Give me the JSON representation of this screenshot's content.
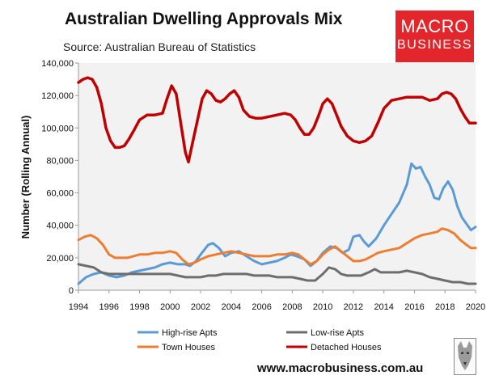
{
  "header": {
    "title": "Australian Dwelling Approvals Mix",
    "subtitle": "Source: Australian Bureau of Statistics",
    "logo_line1": "MACRO",
    "logo_line2": "BUSINESS"
  },
  "footer": {
    "url": "www.macrobusiness.com.au"
  },
  "colors": {
    "high_rise": "#5b9bd5",
    "low_rise": "#6d6d6d",
    "town_houses": "#ed7d31",
    "detached": "#c00000",
    "plot_bg": "#f2f2f2",
    "logo_bg": "#e3262b"
  },
  "chart_data": {
    "type": "line",
    "ylabel": "Number (Rolling Annual)",
    "ylim": [
      0,
      140000
    ],
    "xlim": [
      1994,
      2020
    ],
    "y_ticks": [
      0,
      20000,
      40000,
      60000,
      80000,
      100000,
      120000,
      140000
    ],
    "y_tick_labels": [
      "0",
      "20,000",
      "40,000",
      "60,000",
      "80,000",
      "100,000",
      "120,000",
      "140,000"
    ],
    "x_ticks": [
      1994,
      1996,
      1998,
      2000,
      2002,
      2004,
      2006,
      2008,
      2010,
      2012,
      2014,
      2016,
      2018,
      2020
    ],
    "x_tick_labels": [
      "1994",
      "1996",
      "1998",
      "2000",
      "2002",
      "2004",
      "2006",
      "2008",
      "2010",
      "2012",
      "2014",
      "2016",
      "2018",
      "2020"
    ],
    "grid": false,
    "legend_position": "bottom",
    "series": [
      {
        "name": "High-rise Apts",
        "color": "#5b9bd5",
        "points": [
          [
            1994.0,
            4000
          ],
          [
            1994.5,
            8000
          ],
          [
            1995.0,
            10000
          ],
          [
            1995.5,
            11000
          ],
          [
            1996.0,
            9000
          ],
          [
            1996.5,
            8000
          ],
          [
            1997.0,
            9000
          ],
          [
            1997.5,
            11000
          ],
          [
            1998.0,
            12000
          ],
          [
            1998.5,
            13000
          ],
          [
            1999.0,
            14000
          ],
          [
            1999.5,
            16000
          ],
          [
            2000.0,
            17000
          ],
          [
            2000.5,
            16000
          ],
          [
            2001.0,
            16000
          ],
          [
            2001.3,
            15000
          ],
          [
            2001.7,
            18000
          ],
          [
            2002.0,
            22000
          ],
          [
            2002.5,
            28000
          ],
          [
            2002.8,
            29000
          ],
          [
            2003.2,
            26000
          ],
          [
            2003.6,
            21000
          ],
          [
            2004.0,
            23000
          ],
          [
            2004.5,
            24000
          ],
          [
            2005.0,
            21000
          ],
          [
            2005.5,
            18000
          ],
          [
            2006.0,
            16000
          ],
          [
            2006.5,
            17000
          ],
          [
            2007.0,
            18000
          ],
          [
            2007.5,
            20000
          ],
          [
            2007.9,
            22000
          ],
          [
            2008.3,
            21000
          ],
          [
            2008.8,
            19000
          ],
          [
            2009.2,
            15000
          ],
          [
            2009.6,
            18000
          ],
          [
            2010.0,
            23000
          ],
          [
            2010.5,
            27000
          ],
          [
            2010.9,
            26000
          ],
          [
            2011.3,
            23000
          ],
          [
            2011.7,
            25000
          ],
          [
            2012.0,
            33000
          ],
          [
            2012.4,
            34000
          ],
          [
            2012.7,
            30000
          ],
          [
            2013.0,
            27000
          ],
          [
            2013.5,
            32000
          ],
          [
            2014.0,
            40000
          ],
          [
            2014.5,
            47000
          ],
          [
            2015.0,
            54000
          ],
          [
            2015.5,
            65000
          ],
          [
            2015.8,
            78000
          ],
          [
            2016.1,
            75000
          ],
          [
            2016.4,
            76000
          ],
          [
            2016.7,
            70000
          ],
          [
            2017.0,
            65000
          ],
          [
            2017.3,
            57000
          ],
          [
            2017.6,
            56000
          ],
          [
            2017.9,
            63000
          ],
          [
            2018.2,
            67000
          ],
          [
            2018.5,
            62000
          ],
          [
            2018.8,
            52000
          ],
          [
            2019.1,
            45000
          ],
          [
            2019.4,
            41000
          ],
          [
            2019.7,
            37000
          ],
          [
            2020.0,
            39000
          ]
        ]
      },
      {
        "name": "Low-rise Apts",
        "color": "#6d6d6d",
        "points": [
          [
            1994.0,
            16000
          ],
          [
            1994.5,
            15000
          ],
          [
            1995.0,
            14000
          ],
          [
            1995.5,
            11000
          ],
          [
            1996.0,
            10000
          ],
          [
            1996.5,
            10000
          ],
          [
            1997.0,
            10000
          ],
          [
            1997.5,
            10000
          ],
          [
            1998.0,
            10000
          ],
          [
            1998.5,
            10000
          ],
          [
            1999.0,
            10000
          ],
          [
            1999.5,
            10000
          ],
          [
            2000.0,
            10000
          ],
          [
            2000.5,
            9000
          ],
          [
            2001.0,
            8000
          ],
          [
            2001.5,
            8000
          ],
          [
            2002.0,
            8000
          ],
          [
            2002.5,
            9000
          ],
          [
            2003.0,
            9000
          ],
          [
            2003.5,
            10000
          ],
          [
            2004.0,
            10000
          ],
          [
            2004.5,
            10000
          ],
          [
            2005.0,
            10000
          ],
          [
            2005.5,
            9000
          ],
          [
            2006.0,
            9000
          ],
          [
            2006.5,
            9000
          ],
          [
            2007.0,
            8000
          ],
          [
            2007.5,
            8000
          ],
          [
            2008.0,
            8000
          ],
          [
            2008.5,
            7000
          ],
          [
            2009.0,
            6000
          ],
          [
            2009.5,
            6000
          ],
          [
            2010.0,
            10000
          ],
          [
            2010.4,
            14000
          ],
          [
            2010.8,
            13000
          ],
          [
            2011.2,
            10000
          ],
          [
            2011.6,
            9000
          ],
          [
            2012.0,
            9000
          ],
          [
            2012.5,
            9000
          ],
          [
            2013.0,
            11000
          ],
          [
            2013.4,
            13000
          ],
          [
            2013.8,
            11000
          ],
          [
            2014.2,
            11000
          ],
          [
            2014.6,
            11000
          ],
          [
            2015.0,
            11000
          ],
          [
            2015.5,
            12000
          ],
          [
            2016.0,
            11000
          ],
          [
            2016.5,
            10000
          ],
          [
            2017.0,
            8000
          ],
          [
            2017.5,
            7000
          ],
          [
            2018.0,
            6000
          ],
          [
            2018.5,
            5000
          ],
          [
            2019.0,
            5000
          ],
          [
            2019.5,
            4000
          ],
          [
            2020.0,
            4000
          ]
        ]
      },
      {
        "name": "Town Houses",
        "color": "#ed7d31",
        "points": [
          [
            1994.0,
            31000
          ],
          [
            1994.4,
            33000
          ],
          [
            1994.8,
            34000
          ],
          [
            1995.2,
            32000
          ],
          [
            1995.6,
            28000
          ],
          [
            1996.0,
            22000
          ],
          [
            1996.4,
            20000
          ],
          [
            1996.8,
            20000
          ],
          [
            1997.2,
            20000
          ],
          [
            1997.6,
            21000
          ],
          [
            1998.0,
            22000
          ],
          [
            1998.5,
            22000
          ],
          [
            1999.0,
            23000
          ],
          [
            1999.5,
            23000
          ],
          [
            2000.0,
            24000
          ],
          [
            2000.4,
            23000
          ],
          [
            2000.8,
            19000
          ],
          [
            2001.2,
            16000
          ],
          [
            2001.6,
            17000
          ],
          [
            2002.0,
            19000
          ],
          [
            2002.5,
            21000
          ],
          [
            2003.0,
            22000
          ],
          [
            2003.5,
            23000
          ],
          [
            2004.0,
            24000
          ],
          [
            2004.5,
            23000
          ],
          [
            2005.0,
            22000
          ],
          [
            2005.5,
            21000
          ],
          [
            2006.0,
            21000
          ],
          [
            2006.5,
            21000
          ],
          [
            2007.0,
            22000
          ],
          [
            2007.5,
            22000
          ],
          [
            2008.0,
            23000
          ],
          [
            2008.4,
            22000
          ],
          [
            2008.8,
            19000
          ],
          [
            2009.2,
            16000
          ],
          [
            2009.6,
            18000
          ],
          [
            2010.0,
            22000
          ],
          [
            2010.4,
            25000
          ],
          [
            2010.8,
            27000
          ],
          [
            2011.2,
            24000
          ],
          [
            2011.6,
            21000
          ],
          [
            2012.0,
            18000
          ],
          [
            2012.4,
            18000
          ],
          [
            2012.8,
            19000
          ],
          [
            2013.2,
            21000
          ],
          [
            2013.6,
            23000
          ],
          [
            2014.0,
            24000
          ],
          [
            2014.5,
            25000
          ],
          [
            2015.0,
            26000
          ],
          [
            2015.5,
            29000
          ],
          [
            2016.0,
            32000
          ],
          [
            2016.5,
            34000
          ],
          [
            2017.0,
            35000
          ],
          [
            2017.5,
            36000
          ],
          [
            2017.8,
            38000
          ],
          [
            2018.2,
            37000
          ],
          [
            2018.6,
            35000
          ],
          [
            2019.0,
            31000
          ],
          [
            2019.4,
            28000
          ],
          [
            2019.7,
            26000
          ],
          [
            2020.0,
            26000
          ]
        ]
      },
      {
        "name": "Detached Houses",
        "color": "#c00000",
        "points": [
          [
            1994.0,
            128000
          ],
          [
            1994.3,
            130000
          ],
          [
            1994.6,
            131000
          ],
          [
            1994.9,
            130000
          ],
          [
            1995.2,
            125000
          ],
          [
            1995.5,
            115000
          ],
          [
            1995.8,
            100000
          ],
          [
            1996.1,
            92000
          ],
          [
            1996.4,
            88000
          ],
          [
            1996.7,
            88000
          ],
          [
            1997.0,
            89000
          ],
          [
            1997.3,
            93000
          ],
          [
            1997.6,
            98000
          ],
          [
            1998.0,
            105000
          ],
          [
            1998.5,
            108000
          ],
          [
            1999.0,
            108000
          ],
          [
            1999.5,
            109000
          ],
          [
            1999.8,
            118000
          ],
          [
            2000.1,
            126000
          ],
          [
            2000.4,
            121000
          ],
          [
            2000.7,
            103000
          ],
          [
            2001.0,
            85000
          ],
          [
            2001.2,
            79000
          ],
          [
            2001.5,
            92000
          ],
          [
            2001.8,
            105000
          ],
          [
            2002.1,
            118000
          ],
          [
            2002.4,
            123000
          ],
          [
            2002.7,
            121000
          ],
          [
            2003.0,
            117000
          ],
          [
            2003.3,
            116000
          ],
          [
            2003.6,
            118000
          ],
          [
            2003.9,
            121000
          ],
          [
            2004.2,
            123000
          ],
          [
            2004.5,
            119000
          ],
          [
            2004.8,
            111000
          ],
          [
            2005.2,
            107000
          ],
          [
            2005.6,
            106000
          ],
          [
            2006.0,
            106000
          ],
          [
            2006.5,
            107000
          ],
          [
            2007.0,
            108000
          ],
          [
            2007.5,
            109000
          ],
          [
            2007.9,
            108000
          ],
          [
            2008.2,
            105000
          ],
          [
            2008.5,
            100000
          ],
          [
            2008.8,
            96000
          ],
          [
            2009.1,
            96000
          ],
          [
            2009.4,
            100000
          ],
          [
            2009.7,
            107000
          ],
          [
            2010.0,
            115000
          ],
          [
            2010.3,
            118000
          ],
          [
            2010.6,
            115000
          ],
          [
            2010.9,
            108000
          ],
          [
            2011.2,
            101000
          ],
          [
            2011.6,
            95000
          ],
          [
            2012.0,
            92000
          ],
          [
            2012.4,
            91000
          ],
          [
            2012.8,
            92000
          ],
          [
            2013.2,
            95000
          ],
          [
            2013.6,
            103000
          ],
          [
            2014.0,
            112000
          ],
          [
            2014.5,
            117000
          ],
          [
            2015.0,
            118000
          ],
          [
            2015.5,
            119000
          ],
          [
            2016.0,
            119000
          ],
          [
            2016.5,
            119000
          ],
          [
            2017.0,
            117000
          ],
          [
            2017.5,
            118000
          ],
          [
            2017.8,
            121000
          ],
          [
            2018.1,
            122000
          ],
          [
            2018.4,
            121000
          ],
          [
            2018.7,
            118000
          ],
          [
            2019.0,
            112000
          ],
          [
            2019.3,
            107000
          ],
          [
            2019.6,
            103000
          ],
          [
            2020.0,
            103000
          ]
        ]
      }
    ]
  }
}
